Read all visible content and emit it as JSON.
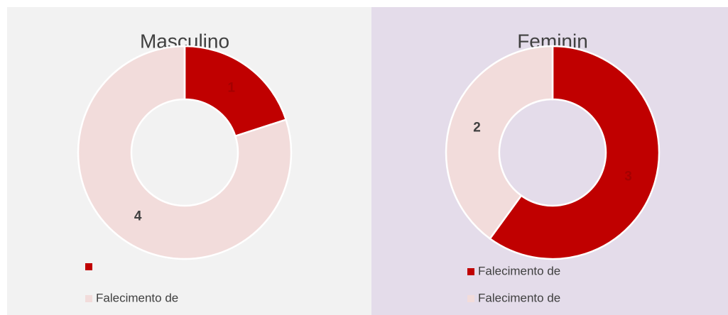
{
  "chart_data": [
    {
      "type": "doughnut",
      "title": "Masculino",
      "categories": [
        null,
        "Falecimento de"
      ],
      "values": [
        1,
        4
      ],
      "colors": [
        "#c00000",
        "#f2dcdb"
      ],
      "background": "#f2f2f2"
    },
    {
      "type": "doughnut",
      "title": "Feminin",
      "categories": [
        "Falecimento de",
        "Falecimento de"
      ],
      "values": [
        3,
        2
      ],
      "colors": [
        "#c00000",
        "#f2dcdb"
      ],
      "background": "#e4dcea"
    }
  ]
}
